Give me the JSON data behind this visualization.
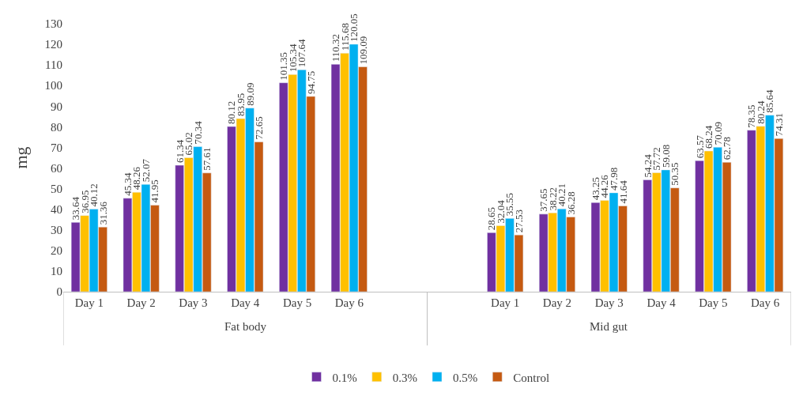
{
  "chart_data": {
    "type": "bar",
    "ylabel": "mg",
    "categories": [
      "Day 1",
      "Day 2",
      "Day 3",
      "Day 4",
      "Day 5",
      "Day 6",
      null,
      null,
      "Day 1",
      "Day 2",
      "Day 3",
      "Day 4",
      "Day 5",
      "Day 6"
    ],
    "series": [
      {
        "name": "0.1%",
        "color": "#7030a0",
        "values": [
          33.64,
          45.34,
          61.34,
          80.12,
          101.35,
          110.32,
          null,
          null,
          28.65,
          37.65,
          43.25,
          54.24,
          63.57,
          78.35
        ]
      },
      {
        "name": "0.3%",
        "color": "#ffc000",
        "values": [
          36.95,
          48.26,
          65.02,
          83.95,
          105.34,
          115.68,
          null,
          null,
          32.04,
          38.22,
          44.26,
          57.72,
          68.24,
          80.24
        ]
      },
      {
        "name": "0.5%",
        "color": "#00b0f0",
        "values": [
          40.12,
          52.07,
          70.34,
          89.09,
          107.64,
          120.05,
          null,
          null,
          35.55,
          40.21,
          47.98,
          59.08,
          70.09,
          85.64
        ]
      },
      {
        "name": "Control",
        "color": "#c55a11",
        "values": [
          31.36,
          41.95,
          57.61,
          72.65,
          94.75,
          109.09,
          null,
          null,
          27.53,
          36.28,
          41.64,
          50.35,
          62.78,
          74.31
        ]
      }
    ],
    "annotations": [
      "Fat body",
      "Mid gut"
    ],
    "ylim": [
      0,
      130
    ],
    "yticks": [
      0,
      10,
      20,
      30,
      40,
      50,
      60,
      70,
      80,
      90,
      100,
      110,
      120,
      130
    ],
    "data_labels": true,
    "legend": "bottom"
  }
}
